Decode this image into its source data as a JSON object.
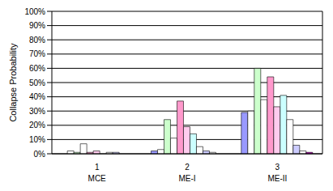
{
  "chart_data": {
    "type": "bar",
    "y_label": "Collapse Probability",
    "categories": [
      "1\nMCE",
      "2\nME-I",
      "3\nME-II"
    ],
    "series": [
      {
        "color": "#9999ff",
        "values": [
          0,
          2,
          29
        ]
      },
      {
        "color": "#ffffff",
        "values": [
          2,
          3,
          30
        ]
      },
      {
        "color": "#ccffcc",
        "values": [
          1,
          24,
          60
        ]
      },
      {
        "color": "#ffffff",
        "values": [
          7,
          11,
          38
        ]
      },
      {
        "color": "#ff99cc",
        "values": [
          1,
          37,
          54
        ]
      },
      {
        "color": "#ffccee",
        "values": [
          2,
          19,
          33
        ]
      },
      {
        "color": "#ccffff",
        "values": [
          0,
          14,
          41
        ]
      },
      {
        "color": "#ffffff",
        "values": [
          1,
          5,
          24
        ]
      },
      {
        "color": "#ccccff",
        "values": [
          1,
          2,
          6
        ]
      },
      {
        "color": "#ffffff",
        "values": [
          0,
          1,
          2
        ]
      },
      {
        "color": "#cc00cc",
        "values": [
          0,
          0,
          1
        ]
      }
    ],
    "ylim": [
      0,
      100
    ],
    "yticks": [
      {
        "value": 0,
        "label": "0%"
      },
      {
        "value": 10,
        "label": "10%"
      },
      {
        "value": 20,
        "label": "20%"
      },
      {
        "value": 30,
        "label": "30%"
      },
      {
        "value": 40,
        "label": "40%"
      },
      {
        "value": 50,
        "label": "50%"
      },
      {
        "value": 60,
        "label": "60%"
      },
      {
        "value": 70,
        "label": "70%"
      },
      {
        "value": 80,
        "label": "80%"
      },
      {
        "value": 90,
        "label": "90%"
      },
      {
        "value": 100,
        "label": "100%"
      }
    ],
    "grid": true
  }
}
